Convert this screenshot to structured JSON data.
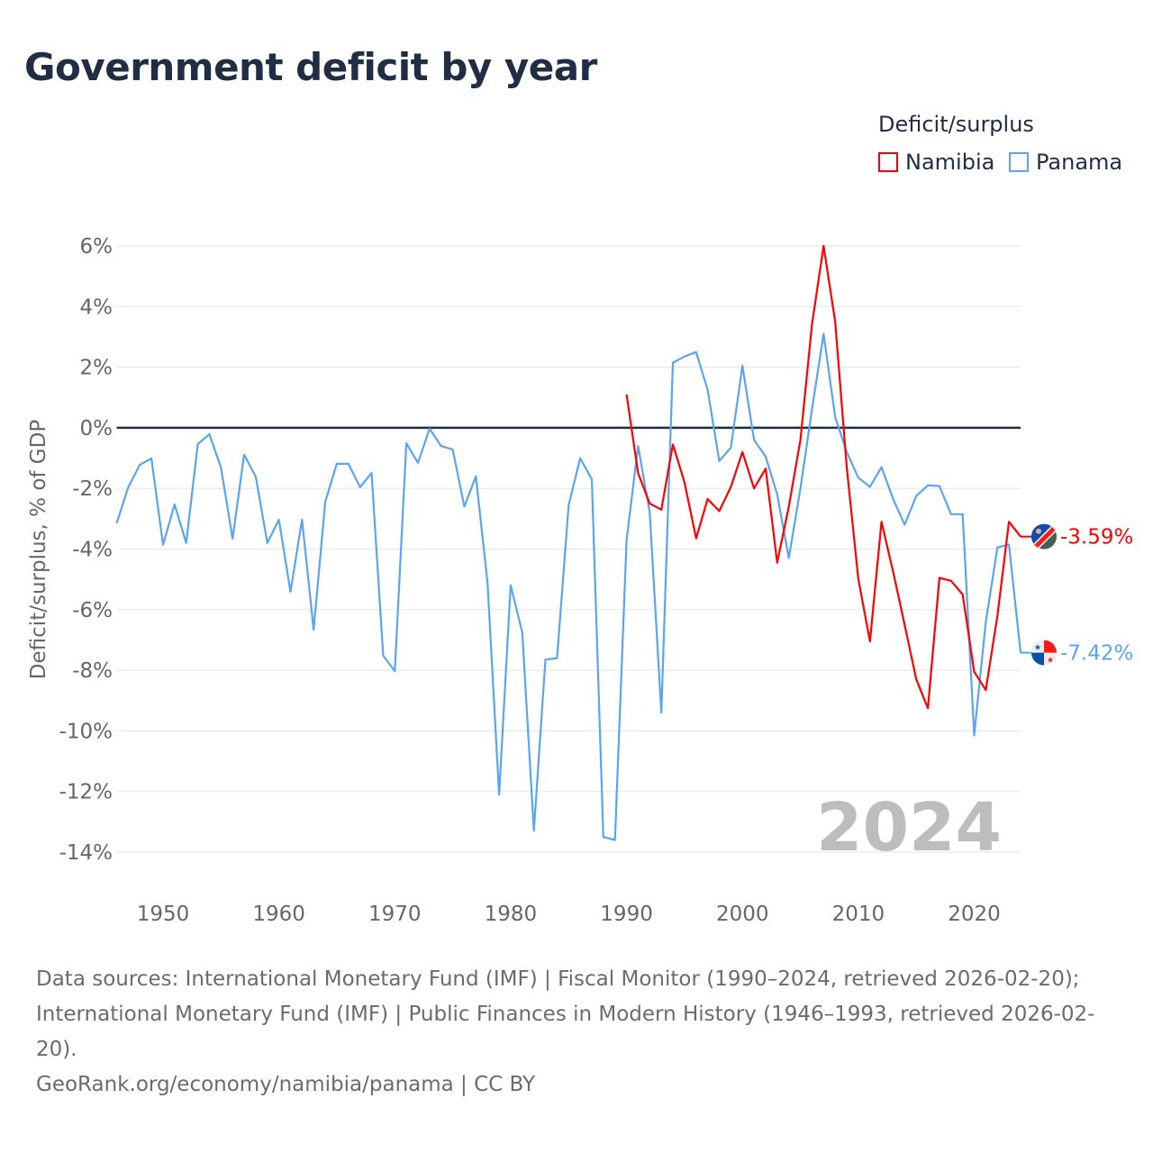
{
  "title": "Government deficit by year",
  "legend": {
    "title": "Deficit/surplus",
    "items": [
      {
        "name": "Namibia",
        "color": "#ff0000"
      },
      {
        "name": "Panama",
        "color": "#5aa5ef"
      }
    ]
  },
  "year_watermark": "2024",
  "end_labels": {
    "namibia": "-3.59%",
    "panama": "-7.42%"
  },
  "footer": {
    "line1": "Data sources: International Monetary Fund (IMF) | Fiscal Monitor (1990–2024, retrieved 2026-02-20); International Monetary Fund (IMF) | Public Finances in Modern History (1946–1993, retrieved 2026-02-20).",
    "line2": "GeoRank.org/economy/namibia/panama | CC BY"
  },
  "chart_data": {
    "type": "line",
    "title": "Government deficit by year",
    "xlabel": "",
    "ylabel": "Deficit/surplus, % of GDP",
    "xlim": [
      1946,
      2024
    ],
    "ylim": [
      -14,
      6
    ],
    "xticks": [
      1950,
      1960,
      1970,
      1980,
      1990,
      2000,
      2010,
      2020
    ],
    "xtick_labels": [
      "1950",
      "1960",
      "1970",
      "1980",
      "1990",
      "2000",
      "2010",
      "2020"
    ],
    "yticks": [
      6,
      4,
      2,
      0,
      -2,
      -4,
      -6,
      -8,
      -10,
      -12,
      -14
    ],
    "ytick_labels": [
      "6%",
      "4%",
      "2%",
      "0%",
      "-2%",
      "-4%",
      "-6%",
      "-8%",
      "-10%",
      "-12%",
      "-14%"
    ],
    "grid": true,
    "legend_position": "top-right",
    "series": [
      {
        "name": "Namibia",
        "color": "#ff0000",
        "start": 1990,
        "values": [
          1.1,
          -1.5,
          -2.5,
          -2.7,
          -0.55,
          -1.8,
          -3.65,
          -2.35,
          -2.75,
          -1.95,
          -0.8,
          -2.0,
          -1.35,
          -4.45,
          -2.6,
          -0.4,
          3.4,
          6.0,
          3.5,
          -1.3,
          -5.0,
          -7.05,
          -3.1,
          -4.75,
          -6.5,
          -8.3,
          -9.25,
          -4.95,
          -5.05,
          -5.5,
          -8.05,
          -8.65,
          -6.2,
          -3.1,
          -3.59
        ]
      },
      {
        "name": "Panama",
        "color": "#5aa5ef",
        "start": 1946,
        "values": [
          -3.15,
          -1.96,
          -1.22,
          -1.01,
          -3.86,
          -2.53,
          -3.8,
          -0.54,
          -0.21,
          -1.31,
          -3.66,
          -0.89,
          -1.61,
          -3.8,
          -3.03,
          -5.41,
          -3.03,
          -6.66,
          -2.44,
          -1.19,
          -1.19,
          -1.96,
          -1.49,
          -7.52,
          -8.03,
          -0.51,
          -1.16,
          -0.03,
          -0.6,
          -0.72,
          -2.6,
          -1.6,
          -5.1,
          -12.1,
          -5.2,
          -6.75,
          -13.3,
          -7.65,
          -7.6,
          -2.55,
          -1.0,
          -1.7,
          -13.5,
          -13.6,
          -3.7,
          -0.6,
          -2.8,
          -9.4,
          2.15,
          2.35,
          2.5,
          1.25,
          -1.1,
          -0.65,
          2.05,
          -0.4,
          -0.95,
          -2.2,
          -4.3,
          -2.0,
          0.6,
          3.1,
          0.35,
          -0.8,
          -1.65,
          -1.95,
          -1.3,
          -2.35,
          -3.2,
          -2.25,
          -1.9,
          -1.92,
          -2.85,
          -2.85,
          -10.15,
          -6.4,
          -3.95,
          -3.85,
          -7.42
        ]
      }
    ]
  }
}
